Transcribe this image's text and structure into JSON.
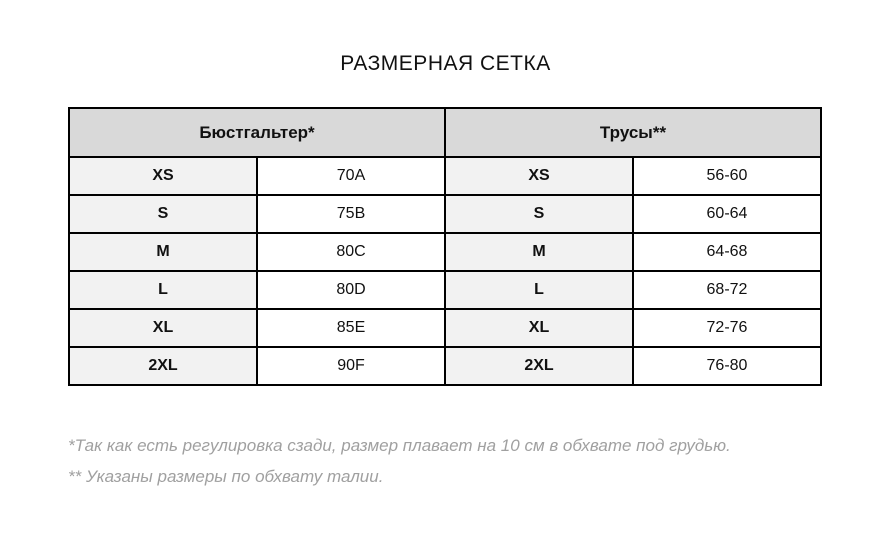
{
  "title": "РАЗМЕРНАЯ СЕТКА",
  "table": {
    "headers": [
      "Бюстгальтер*",
      "Трусы**"
    ],
    "rows": [
      [
        "XS",
        "70A",
        "XS",
        "56-60"
      ],
      [
        "S",
        "75B",
        "S",
        "60-64"
      ],
      [
        "M",
        "80C",
        "M",
        "64-68"
      ],
      [
        "L",
        "80D",
        "L",
        "68-72"
      ],
      [
        "XL",
        "85E",
        "XL",
        "72-76"
      ],
      [
        "2XL",
        "90F",
        "2XL",
        "76-80"
      ]
    ]
  },
  "footnotes": [
    "*Так как есть регулировка сзади, размер плавает на 10 см в обхвате под грудью.",
    "** Указаны размеры по обхвату талии."
  ],
  "colors": {
    "title_text": "#111111",
    "header_bg": "#d9d9d9",
    "size_cell_bg": "#f2f2f2",
    "value_cell_bg": "#ffffff",
    "border": "#000000",
    "footnote_text": "#a0a0a0"
  }
}
